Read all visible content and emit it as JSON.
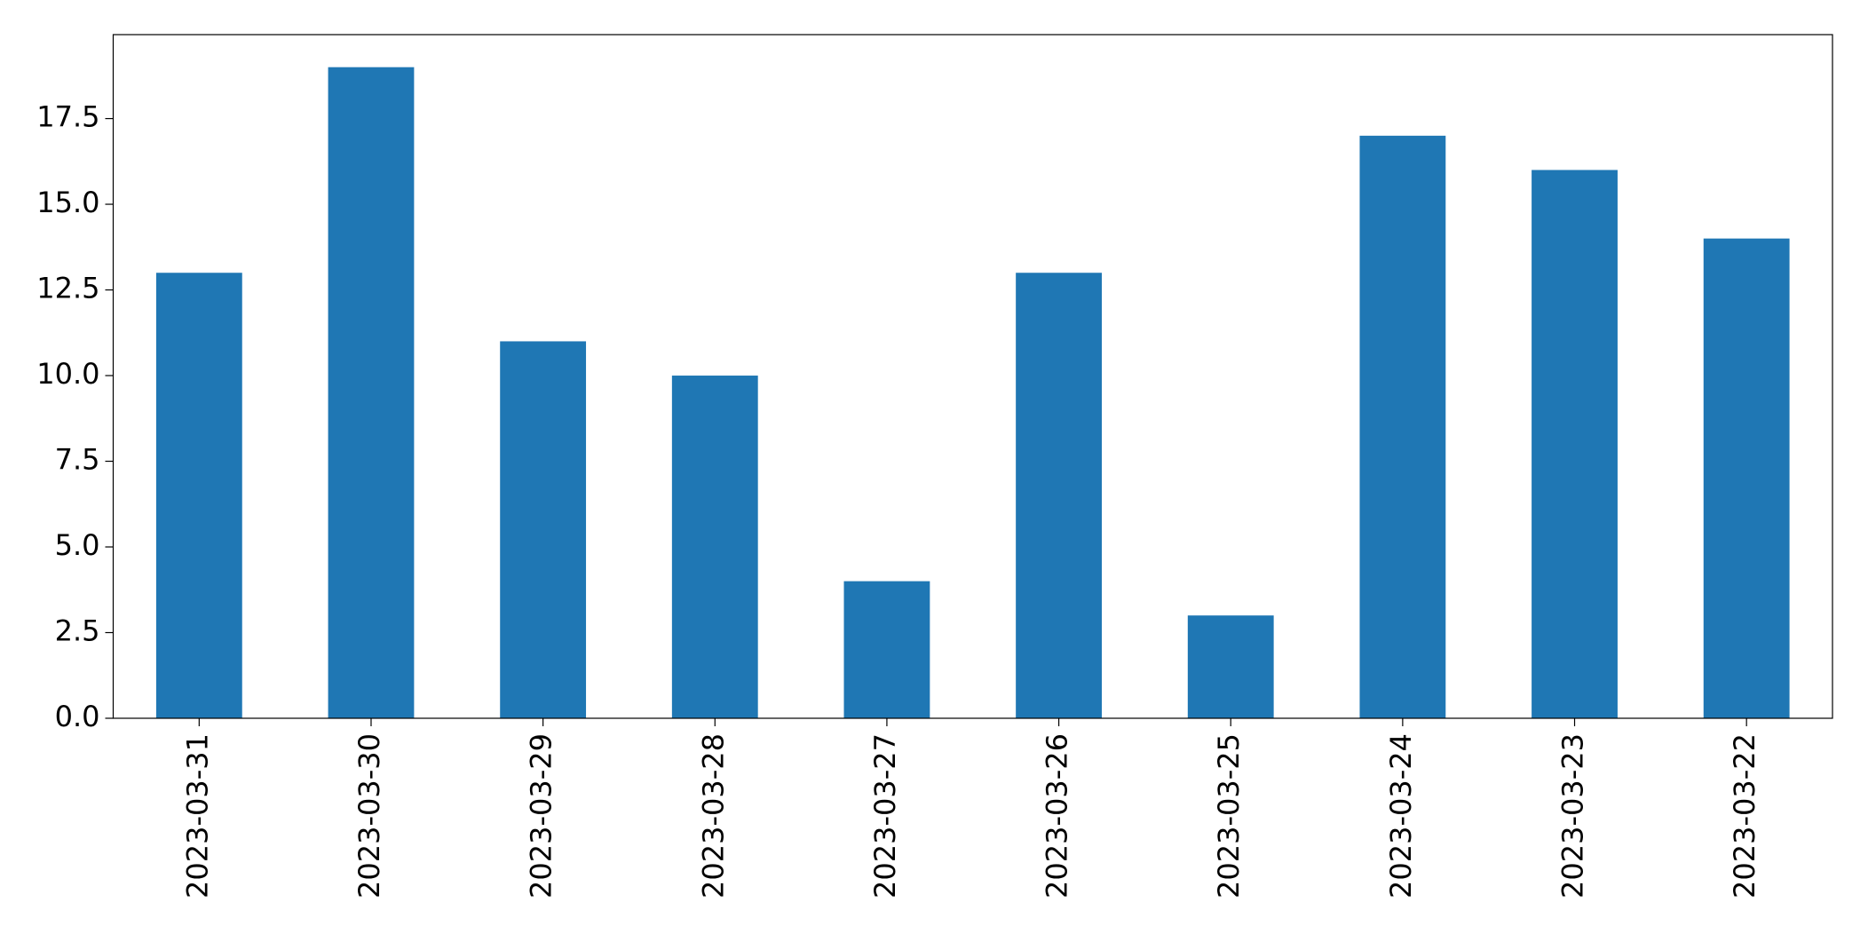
{
  "chart_data": {
    "type": "bar",
    "categories": [
      "2023-03-31",
      "2023-03-30",
      "2023-03-29",
      "2023-03-28",
      "2023-03-27",
      "2023-03-26",
      "2023-03-25",
      "2023-03-24",
      "2023-03-23",
      "2023-03-22"
    ],
    "values": [
      13,
      19,
      11,
      10,
      4,
      13,
      3,
      17,
      16,
      14
    ],
    "color": "#1f77b4",
    "ylim": [
      0,
      19.95
    ],
    "yticks": [
      {
        "value": 0,
        "label": "0.0"
      },
      2.5,
      {
        "value": 5,
        "label": "5.0"
      },
      7.5,
      {
        "value": 10,
        "label": "10.0"
      },
      12.5,
      {
        "value": 15,
        "label": "15.0"
      },
      17.5
    ],
    "grid": false
  }
}
